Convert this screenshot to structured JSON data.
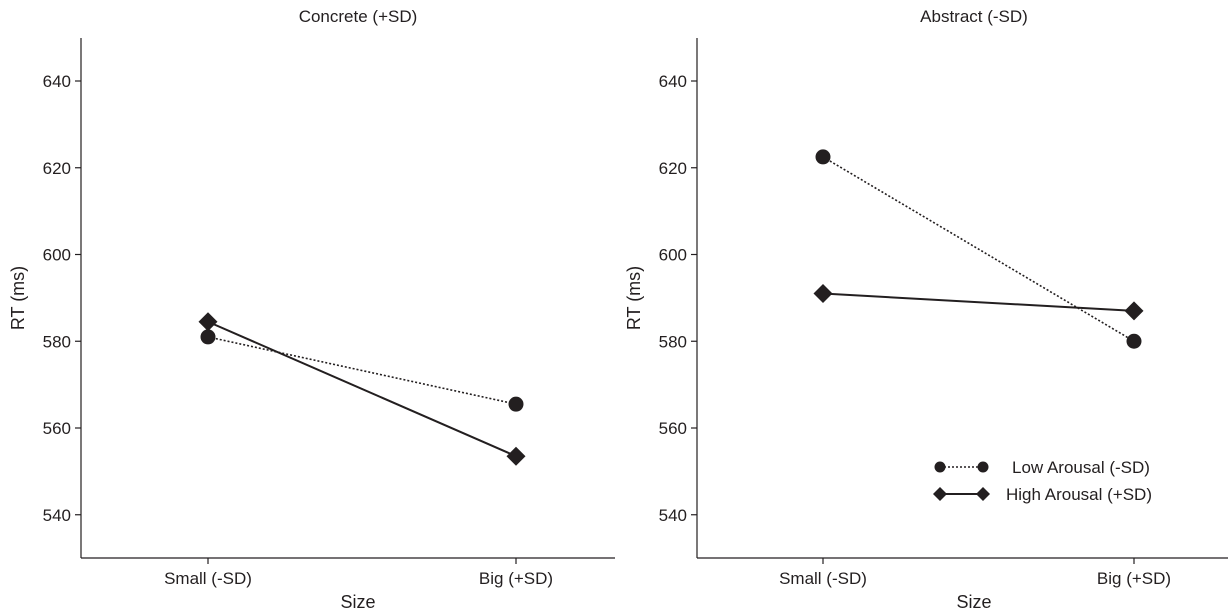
{
  "chart_data": [
    {
      "type": "line",
      "title": "Concrete (+SD)",
      "xlabel": "Size",
      "ylabel": "RT (ms)",
      "categories": [
        "Small (-SD)",
        "Big (+SD)"
      ],
      "ylim": [
        530,
        650
      ],
      "yticks": [
        540,
        560,
        580,
        600,
        620,
        640
      ],
      "grid": false,
      "series": [
        {
          "name": "Low Arousal (-SD)",
          "values": [
            581,
            565.5
          ],
          "marker": "circle",
          "line": "dotted"
        },
        {
          "name": "High Arousal (+SD)",
          "values": [
            584.5,
            553.5
          ],
          "marker": "diamond",
          "line": "solid"
        }
      ]
    },
    {
      "type": "line",
      "title": "Abstract (-SD)",
      "xlabel": "Size",
      "ylabel": "RT (ms)",
      "categories": [
        "Small (-SD)",
        "Big (+SD)"
      ],
      "ylim": [
        530,
        650
      ],
      "yticks": [
        540,
        560,
        580,
        600,
        620,
        640
      ],
      "grid": false,
      "legend": {
        "position": "bottom-right",
        "entries": [
          "Low Arousal (-SD)",
          "High Arousal (+SD)"
        ]
      },
      "series": [
        {
          "name": "Low Arousal (-SD)",
          "values": [
            622.5,
            580
          ],
          "marker": "circle",
          "line": "dotted"
        },
        {
          "name": "High Arousal (+SD)",
          "values": [
            591,
            587
          ],
          "marker": "diamond",
          "line": "solid"
        }
      ]
    }
  ]
}
